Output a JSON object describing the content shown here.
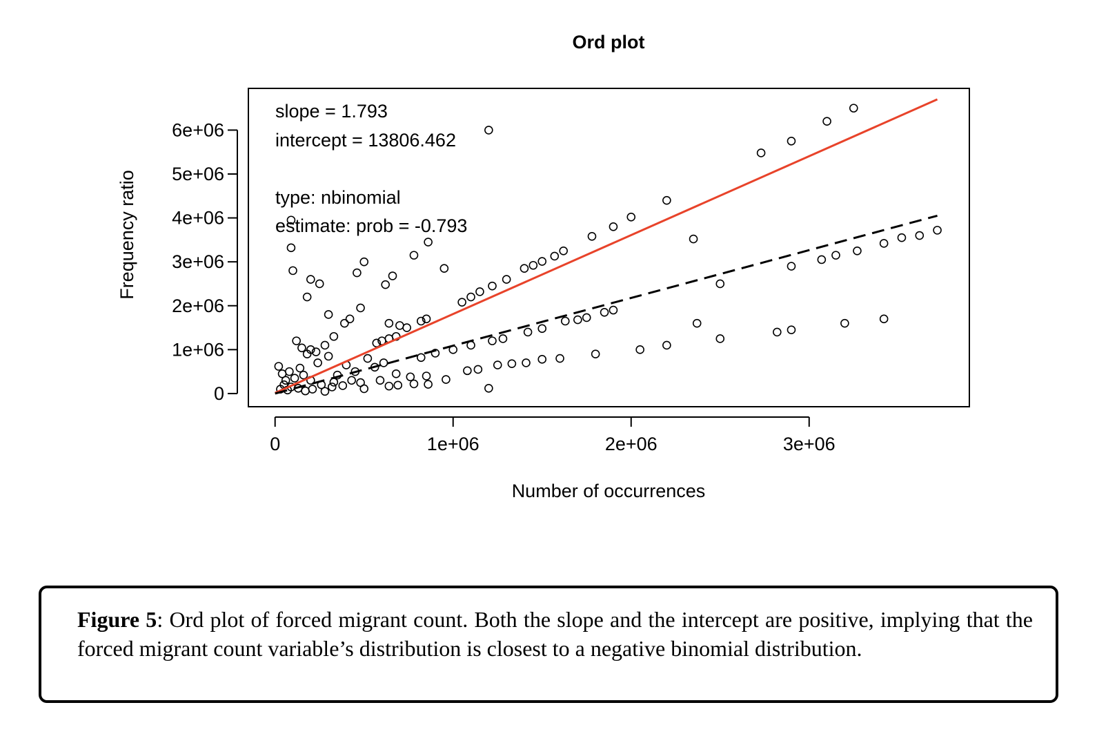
{
  "chart_data": {
    "type": "scatter",
    "title": "Ord plot",
    "xlabel": "Number of occurrences",
    "ylabel": "Frequency ratio",
    "xlim": [
      -150000,
      3900000
    ],
    "ylim": [
      -300000,
      6950000
    ],
    "x_ticks": [
      0,
      1000000,
      2000000,
      3000000
    ],
    "x_tick_labels": [
      "0",
      "1e+06",
      "2e+06",
      "3e+06"
    ],
    "y_ticks": [
      0,
      1000000,
      2000000,
      3000000,
      4000000,
      5000000,
      6000000
    ],
    "y_tick_labels": [
      "0",
      "1e+06",
      "2e+06",
      "3e+06",
      "4e+06",
      "5e+06",
      "6e+06"
    ],
    "grid": false,
    "annotations": [
      "slope = 1.793",
      "intercept = 13806.462",
      "type: nbinomial",
      "estimate: prob = -0.793"
    ],
    "fitted_lines": [
      {
        "style": "solid",
        "color": "#e8432a",
        "x": [
          0,
          3720000
        ],
        "y": [
          13806,
          6700000
        ]
      },
      {
        "style": "dashed",
        "color": "#000000",
        "x": [
          0,
          3720000
        ],
        "y": [
          0,
          4050000
        ]
      }
    ],
    "series": [
      {
        "points": [
          [
            1200000,
            6000000
          ],
          [
            3250000,
            6500000
          ],
          [
            3100000,
            6200000
          ],
          [
            2900000,
            5750000
          ],
          [
            2730000,
            5480000
          ],
          [
            2200000,
            4400000
          ],
          [
            2000000,
            4020000
          ],
          [
            1900000,
            3800000
          ],
          [
            1780000,
            3580000
          ],
          [
            1620000,
            3250000
          ],
          [
            1570000,
            3130000
          ],
          [
            1500000,
            3010000
          ],
          [
            1450000,
            2920000
          ],
          [
            1400000,
            2850000
          ],
          [
            1300000,
            2600000
          ],
          [
            1220000,
            2450000
          ],
          [
            1150000,
            2320000
          ],
          [
            1100000,
            2200000
          ],
          [
            1050000,
            2080000
          ],
          [
            90000,
            3950000
          ],
          [
            90000,
            3320000
          ],
          [
            100000,
            2800000
          ],
          [
            200000,
            2600000
          ],
          [
            250000,
            2500000
          ],
          [
            180000,
            2200000
          ],
          [
            300000,
            1800000
          ],
          [
            500000,
            3000000
          ],
          [
            460000,
            2750000
          ],
          [
            480000,
            1950000
          ],
          [
            860000,
            3450000
          ],
          [
            780000,
            3150000
          ],
          [
            950000,
            2850000
          ],
          [
            620000,
            2480000
          ],
          [
            660000,
            2680000
          ],
          [
            390000,
            1600000
          ],
          [
            420000,
            1700000
          ],
          [
            330000,
            1300000
          ],
          [
            280000,
            1100000
          ],
          [
            120000,
            1200000
          ],
          [
            150000,
            1040000
          ],
          [
            200000,
            1000000
          ],
          [
            230000,
            950000
          ],
          [
            180000,
            900000
          ],
          [
            640000,
            1600000
          ],
          [
            700000,
            1550000
          ],
          [
            740000,
            1500000
          ],
          [
            820000,
            1650000
          ],
          [
            850000,
            1700000
          ],
          [
            570000,
            1150000
          ],
          [
            600000,
            1200000
          ],
          [
            640000,
            1250000
          ],
          [
            680000,
            1300000
          ],
          [
            3720000,
            3720000
          ],
          [
            3620000,
            3600000
          ],
          [
            3520000,
            3550000
          ],
          [
            3420000,
            3420000
          ],
          [
            3270000,
            3250000
          ],
          [
            3150000,
            3150000
          ],
          [
            3070000,
            3050000
          ],
          [
            2900000,
            2900000
          ],
          [
            2350000,
            3520000
          ],
          [
            2500000,
            2500000
          ],
          [
            1900000,
            1900000
          ],
          [
            1850000,
            1850000
          ],
          [
            1750000,
            1730000
          ],
          [
            1700000,
            1680000
          ],
          [
            1630000,
            1650000
          ],
          [
            1500000,
            1480000
          ],
          [
            1420000,
            1400000
          ],
          [
            1280000,
            1250000
          ],
          [
            1220000,
            1200000
          ],
          [
            1100000,
            1100000
          ],
          [
            1000000,
            1000000
          ],
          [
            900000,
            920000
          ],
          [
            820000,
            820000
          ],
          [
            3420000,
            1700000
          ],
          [
            3200000,
            1600000
          ],
          [
            2370000,
            1600000
          ],
          [
            2500000,
            1250000
          ],
          [
            2900000,
            1450000
          ],
          [
            2820000,
            1400000
          ],
          [
            2200000,
            1100000
          ],
          [
            2050000,
            1000000
          ],
          [
            1800000,
            900000
          ],
          [
            1600000,
            800000
          ],
          [
            1500000,
            780000
          ],
          [
            1410000,
            700000
          ],
          [
            1330000,
            680000
          ],
          [
            1250000,
            650000
          ],
          [
            1140000,
            550000
          ],
          [
            1080000,
            520000
          ],
          [
            960000,
            320000
          ],
          [
            860000,
            210000
          ],
          [
            780000,
            220000
          ],
          [
            690000,
            190000
          ],
          [
            640000,
            170000
          ],
          [
            590000,
            300000
          ],
          [
            500000,
            110000
          ],
          [
            1200000,
            120000
          ],
          [
            760000,
            380000
          ],
          [
            850000,
            400000
          ],
          [
            480000,
            250000
          ],
          [
            20000,
            620000
          ],
          [
            40000,
            450000
          ],
          [
            60000,
            300000
          ],
          [
            80000,
            500000
          ],
          [
            110000,
            350000
          ],
          [
            140000,
            580000
          ],
          [
            160000,
            420000
          ],
          [
            200000,
            300000
          ],
          [
            240000,
            700000
          ],
          [
            260000,
            200000
          ],
          [
            300000,
            850000
          ],
          [
            320000,
            150000
          ],
          [
            350000,
            420000
          ],
          [
            400000,
            650000
          ],
          [
            430000,
            300000
          ],
          [
            30000,
            100000
          ],
          [
            50000,
            200000
          ],
          [
            70000,
            80000
          ],
          [
            90000,
            150000
          ],
          [
            130000,
            120000
          ],
          [
            170000,
            60000
          ],
          [
            210000,
            100000
          ],
          [
            280000,
            50000
          ],
          [
            330000,
            260000
          ],
          [
            380000,
            180000
          ],
          [
            450000,
            500000
          ],
          [
            520000,
            800000
          ],
          [
            560000,
            600000
          ],
          [
            610000,
            700000
          ],
          [
            680000,
            450000
          ]
        ]
      }
    ]
  },
  "caption": {
    "label": "Figure 5",
    "text": ": Ord plot of forced migrant count. Both the slope and the intercept are positive, implying that the forced migrant count variable’s distribution is closest to a negative binomial distribution."
  }
}
